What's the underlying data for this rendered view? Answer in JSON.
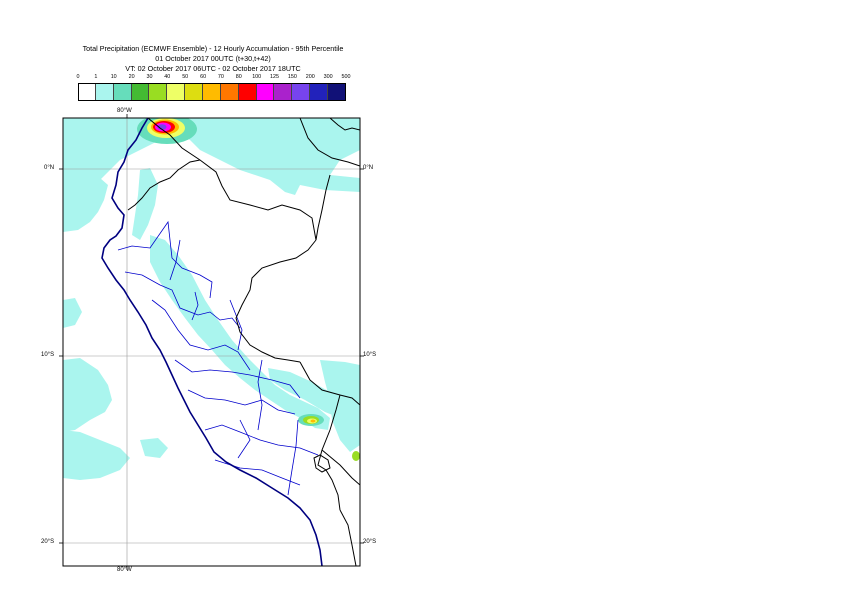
{
  "title": {
    "line1": "Total Precipitation (ECMWF Ensemble) - 12 Hourly Accumulation - 95th Percentile",
    "line2": "01 October 2017 00UTC (t+30,t+42)",
    "line3": "VT: 02 October 2017 06UTC - 02 October 2017 18UTC"
  },
  "legend": {
    "labels": [
      "0",
      "1",
      "10",
      "20",
      "30",
      "40",
      "50",
      "60",
      "70",
      "80",
      "100",
      "125",
      "150",
      "200",
      "300",
      "500"
    ],
    "colors": [
      "#ffffff",
      "#aaf5ee",
      "#66ddbb",
      "#44bb33",
      "#99dd22",
      "#eeff66",
      "#dddd11",
      "#ffbb00",
      "#ff7700",
      "#ff0000",
      "#ff00ff",
      "#aa22cc",
      "#7744ee",
      "#2222bb",
      "#111177"
    ]
  },
  "axes": {
    "lon_top": "80°W",
    "lon_bottom": "80°W",
    "lat_left": [
      "0°N",
      "10°S",
      "20°S"
    ],
    "lat_right": [
      "0°N",
      "10°S",
      "20°S"
    ]
  },
  "colors": {
    "light_precip": "#aaf5ee",
    "coast": "#000080",
    "border": "#000000",
    "region": "#0000cc"
  }
}
